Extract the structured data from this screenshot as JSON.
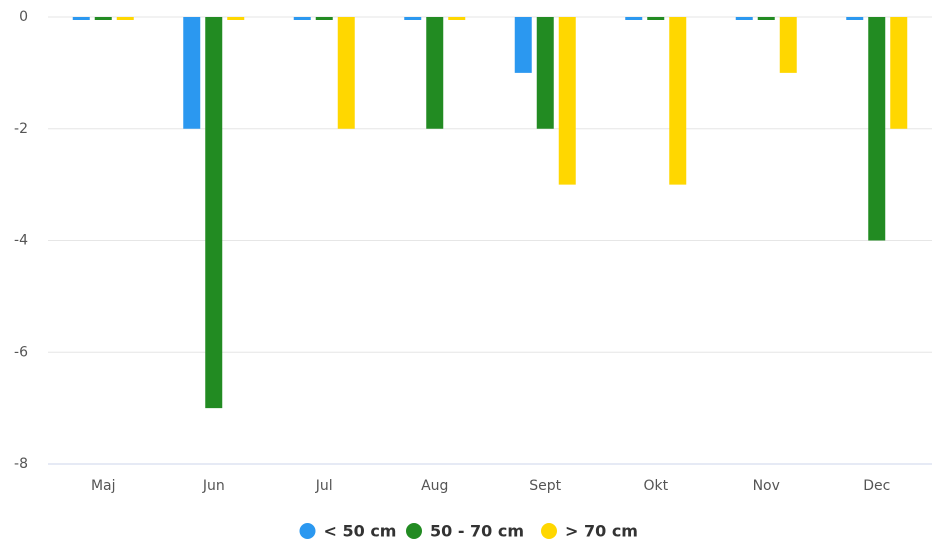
{
  "chart_data": {
    "type": "bar",
    "categories": [
      "Maj",
      "Jun",
      "Jul",
      "Aug",
      "Sept",
      "Okt",
      "Nov",
      "Dec"
    ],
    "series": [
      {
        "name": "< 50 cm",
        "color": "#2b98f0",
        "values": [
          0,
          -2,
          0,
          0,
          -1,
          0,
          0,
          0
        ]
      },
      {
        "name": "50 - 70 cm",
        "color": "#228b22",
        "values": [
          0,
          -7,
          0,
          -2,
          -2,
          0,
          0,
          -4
        ]
      },
      {
        "name": "> 70 cm",
        "color": "#ffd700",
        "values": [
          0,
          0,
          -2,
          0,
          -3,
          -3,
          -1,
          -2
        ]
      }
    ],
    "ylim": [
      -8,
      0
    ],
    "yticks": [
      0,
      -2,
      -4,
      -6,
      -8
    ],
    "grid": true,
    "legend": "bottom"
  }
}
